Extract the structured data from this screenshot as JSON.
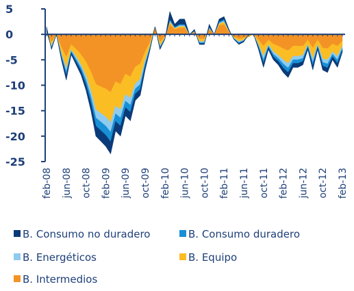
{
  "chart_data": {
    "type": "stacked_area",
    "categories": [
      "feb-08",
      null,
      null,
      null,
      "jun-08",
      null,
      null,
      null,
      "oct-08",
      null,
      null,
      null,
      "feb-09",
      null,
      null,
      null,
      "jun-09",
      null,
      null,
      null,
      "oct-09",
      null,
      null,
      null,
      "feb-10",
      null,
      null,
      null,
      "jun-10",
      null,
      null,
      null,
      "oct-10",
      null,
      null,
      null,
      "feb-11",
      null,
      null,
      null,
      "jun-11",
      null,
      null,
      null,
      "oct-11",
      null,
      null,
      null,
      "feb-12",
      null,
      null,
      null,
      "jun-12",
      null,
      null,
      null,
      "oct-12",
      null,
      null,
      null,
      "feb-13"
    ],
    "series": [
      {
        "name": "B. Consumo no duradero",
        "color": "#0b3a78",
        "values": [
          0.8,
          -0.3,
          0,
          -0.5,
          -0.9,
          -0.4,
          -0.6,
          -0.8,
          -1.1,
          -1.5,
          -2,
          -2.1,
          -2.2,
          -2.4,
          -1.9,
          -2,
          -1.6,
          -1.7,
          -1.3,
          -1.2,
          -0.7,
          -0.3,
          0,
          -0.3,
          -0.1,
          1.5,
          0.5,
          1,
          1,
          0,
          0.3,
          -0.2,
          -0.2,
          0.5,
          0,
          0.5,
          0.5,
          0.2,
          -0.1,
          -0.2,
          -0.2,
          0,
          0,
          -0.4,
          -0.8,
          -0.4,
          -0.6,
          -0.7,
          -0.9,
          -1,
          -0.8,
          -0.8,
          -0.7,
          -0.4,
          -0.8,
          -0.4,
          -0.8,
          -0.9,
          -0.6,
          -0.8,
          -0.4
        ]
      },
      {
        "name": "B. Consumo duradero",
        "color": "#1890d5",
        "values": [
          0.2,
          -0.2,
          0,
          -0.4,
          -0.7,
          -0.3,
          -0.5,
          -0.6,
          -0.9,
          -1.2,
          -1.6,
          -1.7,
          -1.8,
          -1.9,
          -1.5,
          -1.6,
          -1.3,
          -1.4,
          -1,
          -1,
          -0.6,
          -0.2,
          0,
          -0.2,
          -0.1,
          0.3,
          0.2,
          0.2,
          0.2,
          0,
          0.1,
          -0.2,
          -0.2,
          0.2,
          0,
          0.2,
          0.3,
          0.1,
          -0.1,
          -0.2,
          -0.1,
          0,
          0,
          -0.3,
          -0.7,
          -0.3,
          -0.5,
          -0.6,
          -0.8,
          -0.9,
          -0.7,
          -0.7,
          -0.6,
          -0.3,
          -0.7,
          -0.3,
          -0.7,
          -0.8,
          -0.5,
          -0.7,
          -0.4
        ]
      },
      {
        "name": "B. Energéticos",
        "color": "#8ecbee",
        "values": [
          0,
          -0.2,
          0,
          -0.4,
          -0.7,
          -0.3,
          -0.5,
          -0.6,
          -0.9,
          -1.2,
          -1.6,
          -1.7,
          -1.8,
          -1.9,
          -1.5,
          -1.6,
          -1.3,
          -1.4,
          -1,
          -1,
          -0.6,
          -0.2,
          0,
          -0.2,
          -0.1,
          0.2,
          0.1,
          0.2,
          0.2,
          0,
          0,
          -0.2,
          -0.2,
          0.1,
          0,
          0.2,
          0.2,
          0,
          -0.1,
          -0.2,
          -0.1,
          0,
          0,
          -0.3,
          -0.7,
          -0.3,
          -0.5,
          -0.6,
          -0.8,
          -0.9,
          -0.7,
          -0.7,
          -0.6,
          -0.3,
          -0.7,
          -0.3,
          -0.7,
          -0.8,
          -0.5,
          -0.7,
          -0.4
        ]
      },
      {
        "name": "B. Equipo",
        "color": "#fbbd24",
        "values": [
          0.1,
          -0.8,
          0,
          -1.2,
          -2.2,
          -1,
          -1.5,
          -2,
          -2.7,
          -3.7,
          -5,
          -5.2,
          -5.5,
          -5.9,
          -4.8,
          -5,
          -4,
          -4.2,
          -3.3,
          -3,
          -1.7,
          -0.8,
          0,
          -0.8,
          -0.2,
          0.5,
          0.2,
          0.3,
          0.3,
          0,
          0.1,
          -0.5,
          -0.5,
          0.2,
          0,
          0.3,
          0.5,
          0.2,
          -0.2,
          -0.5,
          -0.4,
          -0.2,
          0,
          -0.9,
          -2,
          -0.9,
          -1.5,
          -1.8,
          -2.2,
          -2.5,
          -2,
          -2,
          -1.8,
          -0.9,
          -2.1,
          -0.9,
          -2.1,
          -2.2,
          -1.5,
          -2,
          -1
        ]
      },
      {
        "name": "B. Intermedios",
        "color": "#f39325",
        "values": [
          0.4,
          -1.5,
          0,
          -2.5,
          -4.5,
          -2,
          -2.9,
          -4,
          -5.4,
          -7.4,
          -9.8,
          -10.3,
          -10.7,
          -11.4,
          -9.3,
          -9.8,
          -7.8,
          -8.3,
          -6.4,
          -5.8,
          -3.4,
          -1.5,
          1.5,
          -1.5,
          -0.5,
          2,
          1,
          1.3,
          1.3,
          0,
          0.5,
          -0.9,
          -0.9,
          1,
          0,
          1.8,
          2,
          0.5,
          -0.5,
          -0.9,
          -0.7,
          -0.3,
          0,
          -1.1,
          -2.3,
          -1.1,
          -1.9,
          -2.3,
          -2.8,
          -3.2,
          -2.3,
          -2.3,
          -2.3,
          -1.1,
          -2.7,
          -1.1,
          -2.7,
          -2.8,
          -1.9,
          -2.3,
          -1.3
        ]
      }
    ],
    "ylim": [
      -25,
      5
    ],
    "yticks": [
      5,
      0,
      -5,
      -10,
      -15,
      -20,
      -25
    ],
    "grid": false,
    "legend": "bottom"
  }
}
